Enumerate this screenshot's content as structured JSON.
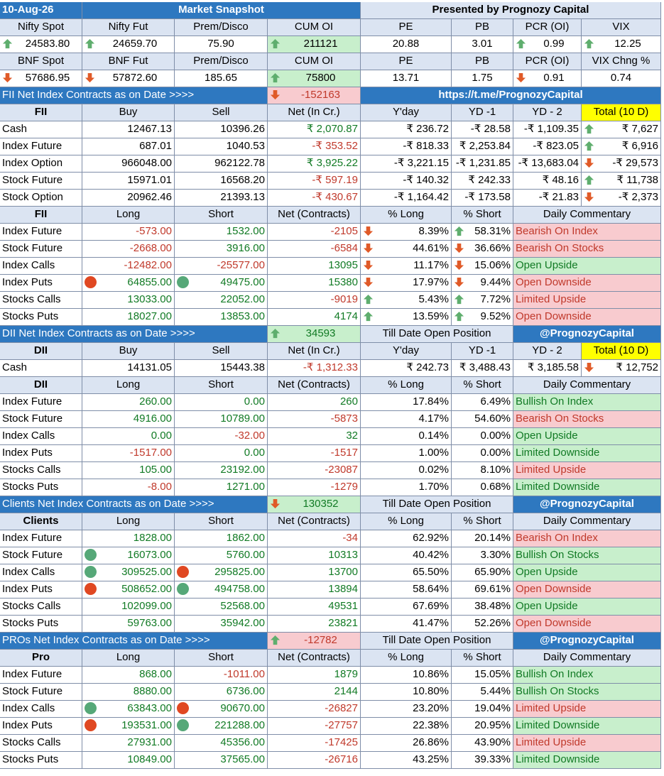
{
  "colors": {
    "header_blue": "#2e78c0",
    "label_blue": "#dbe4f2",
    "positive_fill": "#c8efcc",
    "negative_fill": "#f8cbcf",
    "highlight_yellow": "#ffff00",
    "positive_text": "#117a24",
    "negative_text": "#c0392b"
  },
  "header": [
    "10-Aug-26",
    "Market Snapshot",
    "Presented by Prognozy Capital"
  ],
  "nifty_labels": [
    "Nifty Spot",
    "Nifty Fut",
    "Prem/Disco",
    "CUM OI",
    "PE",
    "PB",
    "PCR (OI)",
    "VIX"
  ],
  "nifty_values": [
    "24583.80",
    "24659.70",
    "75.90",
    "211121",
    "20.88",
    "3.01",
    "0.99",
    "12.25"
  ],
  "bnf_labels": [
    "BNF Spot",
    "BNF Fut",
    "Prem/Disco",
    "CUM OI",
    "PE",
    "PB",
    "PCR (OI)",
    "VIX Chng %"
  ],
  "bnf_values": [
    "57686.95",
    "57872.60",
    "185.65",
    "75800",
    "13.71",
    "1.75",
    "0.91",
    "0.74"
  ],
  "fii_bar": [
    "FII  Net Index Contracts as on Date >>>>",
    "-152163",
    "https://t.me/PrognozyCapital"
  ],
  "fii_cash_header": [
    "FII",
    "Buy",
    "Sell",
    "Net (In Cr.)",
    "Y'day",
    "YD -1",
    "YD - 2",
    "Total (10 D)"
  ],
  "fii_cash_rows": [
    [
      "Cash",
      "12467.13",
      "10396.26",
      "₹ 2,070.87",
      "₹ 236.72",
      "-₹ 28.58",
      "-₹ 1,109.35",
      "₹ 7,627"
    ],
    [
      "Index Future",
      "687.01",
      "1040.53",
      "-₹ 353.52",
      "-₹ 818.33",
      "₹ 2,253.84",
      "-₹ 823.05",
      "₹ 6,916"
    ],
    [
      "Index Option",
      "966048.00",
      "962122.78",
      "₹ 3,925.22",
      "-₹ 3,221.15",
      "-₹ 1,231.85",
      "-₹ 13,683.04",
      "-₹ 29,573"
    ],
    [
      "Stock Future",
      "15971.01",
      "16568.20",
      "-₹ 597.19",
      "-₹ 140.32",
      "₹ 242.33",
      "₹ 48.16",
      "₹ 11,738"
    ],
    [
      "Stock Option",
      "20962.46",
      "21393.13",
      "-₹ 430.67",
      "-₹ 1,164.42",
      "-₹ 173.58",
      "-₹ 21.83",
      "-₹ 2,373"
    ]
  ],
  "fii_pos_header": [
    "FII",
    "Long",
    "Short",
    "Net (Contracts)",
    "% Long",
    "% Short",
    "Daily Commentary"
  ],
  "fii_pos_rows": [
    [
      "Index Future",
      "-573.00",
      "1532.00",
      "-2105",
      "8.39%",
      "58.31%",
      "Bearish On Index"
    ],
    [
      "Stock Future",
      "-2668.00",
      "3916.00",
      "-6584",
      "44.61%",
      "36.66%",
      "Bearish On Stocks"
    ],
    [
      "Index Calls",
      "-12482.00",
      "-25577.00",
      "13095",
      "11.17%",
      "15.06%",
      "Open Upside"
    ],
    [
      "Index Puts",
      "64855.00",
      "49475.00",
      "15380",
      "17.97%",
      "9.44%",
      "Open Downside"
    ],
    [
      "Stocks Calls",
      "13033.00",
      "22052.00",
      "-9019",
      "5.43%",
      "7.72%",
      "Limited Upside"
    ],
    [
      "Stocks Puts",
      "18027.00",
      "13853.00",
      "4174",
      "13.59%",
      "9.52%",
      "Open Downside"
    ]
  ],
  "dii_bar": [
    "DII Net Index Contracts as on Date >>>>",
    "34593",
    "Till Date Open Position",
    "@PrognozyCapital"
  ],
  "dii_cash_header": [
    "DII",
    "Buy",
    "Sell",
    "Net (In Cr.)",
    "Y'day",
    "YD -1",
    "YD - 2",
    "Total (10 D)"
  ],
  "dii_cash_rows": [
    [
      "Cash",
      "14131.05",
      "15443.38",
      "-₹ 1,312.33",
      "₹ 242.73",
      "₹ 3,488.43",
      "₹ 3,185.58",
      "₹ 12,752"
    ]
  ],
  "dii_pos_header": [
    "DII",
    "Long",
    "Short",
    "Net (Contracts)",
    "% Long",
    "% Short",
    "Daily Commentary"
  ],
  "dii_pos_rows": [
    [
      "Index Future",
      "260.00",
      "0.00",
      "260",
      "17.84%",
      "6.49%",
      "Bullish On Index"
    ],
    [
      "Stock Future",
      "4916.00",
      "10789.00",
      "-5873",
      "4.17%",
      "54.60%",
      "Bearish On Stocks"
    ],
    [
      "Index Calls",
      "0.00",
      "-32.00",
      "32",
      "0.14%",
      "0.00%",
      "Open Upside"
    ],
    [
      "Index Puts",
      "-1517.00",
      "0.00",
      "-1517",
      "1.00%",
      "0.00%",
      "Limited Downside"
    ],
    [
      "Stocks Calls",
      "105.00",
      "23192.00",
      "-23087",
      "0.02%",
      "8.10%",
      "Limited Upside"
    ],
    [
      "Stocks Puts",
      "-8.00",
      "1271.00",
      "-1279",
      "1.70%",
      "0.68%",
      "Limited Downside"
    ]
  ],
  "cli_bar": [
    "Clients  Net Index Contracts as on Date >>>>",
    "130352",
    "Till Date Open Position",
    "@PrognozyCapital"
  ],
  "cli_pos_header": [
    "Clients",
    "Long",
    "Short",
    "Net (Contracts)",
    "% Long",
    "% Short",
    "Daily Commentary"
  ],
  "cli_pos_rows": [
    [
      "Index Future",
      "1828.00",
      "1862.00",
      "-34",
      "62.92%",
      "20.14%",
      "Bearish On Index"
    ],
    [
      "Stock Future",
      "16073.00",
      "5760.00",
      "10313",
      "40.42%",
      "3.30%",
      "Bullish On Stocks"
    ],
    [
      "Index Calls",
      "309525.00",
      "295825.00",
      "13700",
      "65.50%",
      "65.90%",
      "Open Upside"
    ],
    [
      "Index Puts",
      "508652.00",
      "494758.00",
      "13894",
      "58.64%",
      "69.61%",
      "Open Downside"
    ],
    [
      "Stocks Calls",
      "102099.00",
      "52568.00",
      "49531",
      "67.69%",
      "38.48%",
      "Open Upside"
    ],
    [
      "Stocks Puts",
      "59763.00",
      "35942.00",
      "23821",
      "41.47%",
      "52.26%",
      "Open Downside"
    ]
  ],
  "pro_bar": [
    "PROs Net Index Contracts as on Date >>>>",
    "-12782",
    "Till Date Open Position",
    "@PrognozyCapital"
  ],
  "pro_pos_header": [
    "Pro",
    "Long",
    "Short",
    "Net (Contracts)",
    "% Long",
    "% Short",
    "Daily Commentary"
  ],
  "pro_pos_rows": [
    [
      "Index Future",
      "868.00",
      "-1011.00",
      "1879",
      "10.86%",
      "15.05%",
      "Bullish On Index"
    ],
    [
      "Stock Future",
      "8880.00",
      "6736.00",
      "2144",
      "10.80%",
      "5.44%",
      "Bullish On Stocks"
    ],
    [
      "Index Calls",
      "63843.00",
      "90670.00",
      "-26827",
      "23.20%",
      "19.04%",
      "Limited Upside"
    ],
    [
      "Index Puts",
      "193531.00",
      "221288.00",
      "-27757",
      "22.38%",
      "20.95%",
      "Limited Downside"
    ],
    [
      "Stocks Calls",
      "27931.00",
      "45356.00",
      "-17425",
      "26.86%",
      "43.90%",
      "Limited Upside"
    ],
    [
      "Stocks Puts",
      "10849.00",
      "37565.00",
      "-26716",
      "43.25%",
      "39.33%",
      "Limited Downside"
    ]
  ]
}
